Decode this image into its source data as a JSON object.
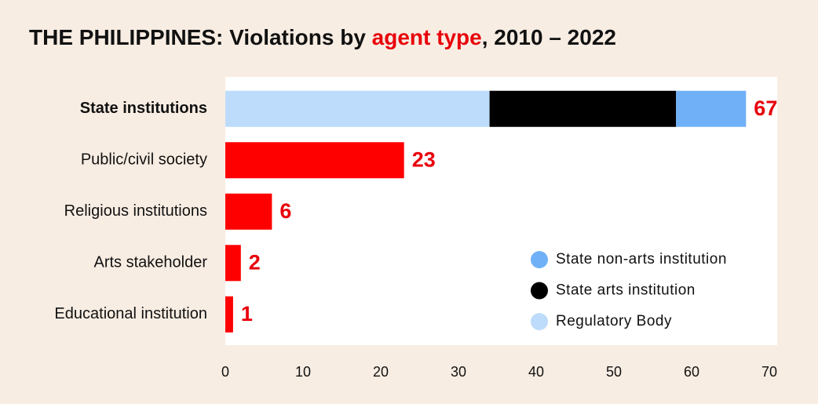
{
  "chart_data": {
    "type": "stacked-bar-horizontal",
    "title": {
      "parts": [
        "THE PHILIPPINES: Violations by ",
        "agent type",
        ", 2010 – 2022"
      ],
      "part_colors": [
        "#111111",
        "#e8000b",
        "#111111"
      ]
    },
    "categories": [
      "State institutions",
      "Public/civil society",
      "Religious institutions",
      "Arts stakeholder",
      "Educational institution"
    ],
    "bold_categories": [
      0
    ],
    "series": [
      {
        "name": "Regulatory Body",
        "color": "#bddcfb",
        "values": [
          34,
          null,
          null,
          null,
          null
        ]
      },
      {
        "name": "State arts institution",
        "color": "#000000",
        "values": [
          24,
          null,
          null,
          null,
          null
        ]
      },
      {
        "name": "State non-arts institution",
        "color": "#70b0f7",
        "values": [
          9,
          null,
          null,
          null,
          null
        ]
      },
      {
        "color": "#ff0000",
        "values": [
          null,
          23,
          6,
          2,
          1
        ]
      }
    ],
    "totals": [
      67,
      23,
      6,
      2,
      1
    ],
    "xlim": [
      0,
      70
    ],
    "xticks": [
      0,
      10,
      20,
      30,
      40,
      50,
      60,
      70
    ],
    "legend": "lower right",
    "legend_reversed": true
  }
}
